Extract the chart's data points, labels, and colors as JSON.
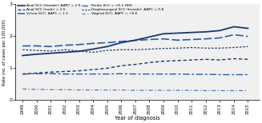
{
  "years": [
    1999,
    2000,
    2001,
    2002,
    2003,
    2004,
    2005,
    2006,
    2007,
    2008,
    2009,
    2010,
    2011,
    2012,
    2013,
    2014,
    2015
  ],
  "anal_scc_female": [
    1.4,
    1.44,
    1.47,
    1.5,
    1.53,
    1.6,
    1.68,
    1.8,
    1.88,
    1.98,
    2.08,
    2.1,
    2.12,
    2.14,
    2.18,
    2.3,
    2.25
  ],
  "vulvar_scc": [
    1.7,
    1.7,
    1.68,
    1.72,
    1.74,
    1.78,
    1.8,
    1.84,
    1.87,
    1.9,
    1.92,
    1.88,
    1.9,
    1.92,
    1.95,
    2.05,
    2.0
  ],
  "oropharyngeal_scc_female": [
    1.58,
    1.56,
    1.54,
    1.58,
    1.54,
    1.5,
    1.56,
    1.58,
    1.58,
    1.6,
    1.62,
    1.63,
    1.65,
    1.63,
    1.63,
    1.65,
    1.68
  ],
  "anal_scc_male": [
    0.82,
    0.85,
    0.88,
    0.9,
    0.92,
    0.96,
    1.0,
    1.08,
    1.12,
    1.18,
    1.22,
    1.24,
    1.26,
    1.28,
    1.26,
    1.3,
    1.28
  ],
  "penile_scc": [
    0.82,
    0.83,
    0.83,
    0.82,
    0.82,
    0.82,
    0.82,
    0.83,
    0.82,
    0.82,
    0.82,
    0.82,
    0.81,
    0.81,
    0.8,
    0.8,
    0.8
  ],
  "vaginal_scc": [
    0.35,
    0.34,
    0.33,
    0.33,
    0.32,
    0.32,
    0.32,
    0.32,
    0.31,
    0.31,
    0.31,
    0.31,
    0.31,
    0.3,
    0.3,
    0.3,
    0.3
  ],
  "ylim": [
    0,
    3
  ],
  "yticks": [
    0,
    1,
    2,
    3
  ],
  "xlabel": "Year of diagnosis",
  "ylabel": "Rate (no. of cases per 100,000)",
  "color_dark": "#1a3870",
  "color_mid": "#2b5ea7",
  "color_light": "#4a7fc1"
}
